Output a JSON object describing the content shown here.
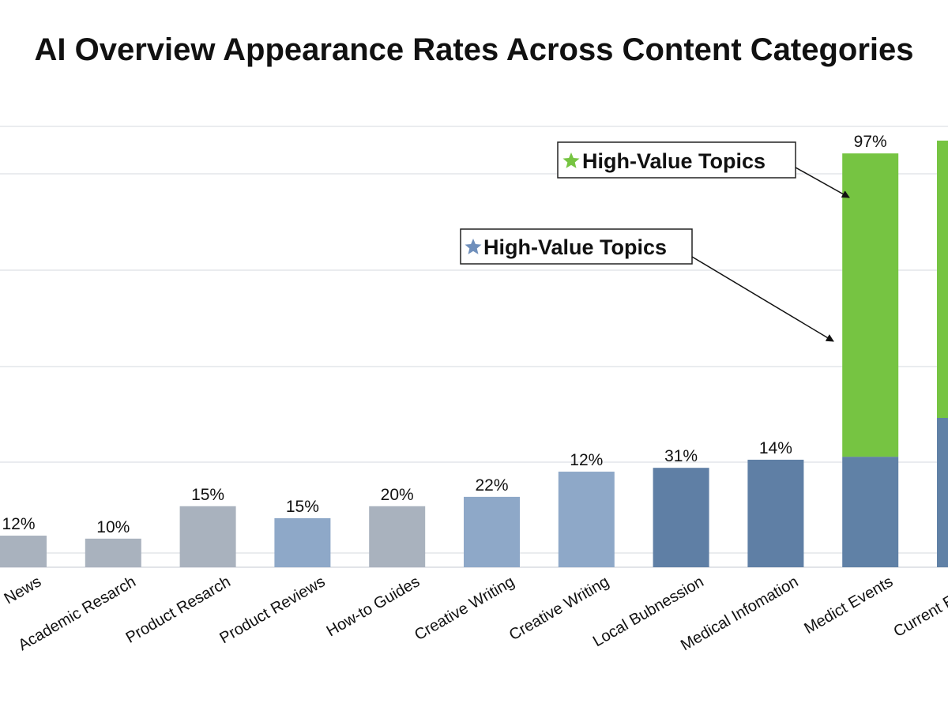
{
  "chart_data": {
    "type": "bar",
    "title": "AI Overview Appearance Rates Across Content Categories",
    "xlabel": "",
    "ylabel": "",
    "ylim": [
      0,
      100
    ],
    "grid": true,
    "categories": [
      "News",
      "Academic Resarch",
      "Product Resarch",
      "Product Reviews",
      "How-to Guides",
      "Creative Writing",
      "Creative Writing",
      "Local Bubnession",
      "Medical Infomation",
      "Medict Events",
      "Current Events"
    ],
    "data_labels": [
      "12%",
      "10%",
      "15%",
      "15%",
      "20%",
      "22%",
      "12%",
      "31%",
      "14%",
      "97%",
      ""
    ],
    "series": [
      {
        "values": [
          7.4,
          6.7,
          14.3,
          11.5,
          14.3,
          16.5,
          22.4,
          23.3,
          25.2,
          25.9,
          35
        ]
      },
      {
        "values": [
          0,
          0,
          0,
          0,
          0,
          0,
          0,
          0,
          0,
          71.1,
          65
        ]
      }
    ],
    "bar_colors": [
      "#a9b2be",
      "#a9b2be",
      "#a9b2be",
      "#8ea8c8",
      "#a9b2be",
      "#8ea8c8",
      "#8ea8c8",
      "#5f7fa5",
      "#5f7fa5",
      "#6081a6",
      "#6081a6"
    ],
    "highlight_color": "#76c442",
    "annotations": [
      {
        "text": "High-Value Topics",
        "icon": "star-icon",
        "color": "#76c442"
      },
      {
        "text": "High-Value Topics",
        "icon": "star-icon",
        "color": "#6f8fbb"
      }
    ]
  }
}
